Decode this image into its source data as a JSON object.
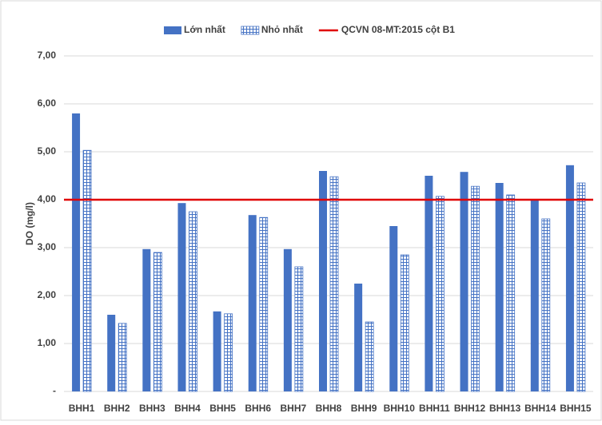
{
  "chart_data": {
    "type": "bar",
    "categories": [
      "BHH1",
      "BHH2",
      "BHH3",
      "BHH4",
      "BHH5",
      "BHH6",
      "BHH7",
      "BHH8",
      "BHH9",
      "BHH10",
      "BHH11",
      "BHH12",
      "BHH13",
      "BHH14",
      "BHH15"
    ],
    "series": [
      {
        "name": "Lớn nhất",
        "color": "#4472c4",
        "values": [
          5.8,
          1.6,
          2.97,
          3.93,
          1.67,
          3.68,
          2.97,
          4.6,
          2.25,
          3.45,
          4.5,
          4.58,
          4.35,
          4.0,
          4.72
        ]
      },
      {
        "name": "Nhỏ nhất",
        "color": "#4472c4",
        "values": [
          5.03,
          1.42,
          2.9,
          3.75,
          1.62,
          3.63,
          2.6,
          4.48,
          1.45,
          2.85,
          4.07,
          4.28,
          4.1,
          3.6,
          4.35
        ]
      }
    ],
    "reference_line": {
      "name": "QCVN 08-MT:2015 cột B1",
      "value": 4,
      "color": "#e00000"
    },
    "y_label": "DO (mg/l)",
    "ylim": [
      0,
      7
    ],
    "yticks": [
      {
        "value": 0,
        "label": "-"
      },
      {
        "value": 1,
        "label": "1,00"
      },
      {
        "value": 2,
        "label": "2,00"
      },
      {
        "value": 3,
        "label": "3,00"
      },
      {
        "value": 4,
        "label": "4,00"
      },
      {
        "value": 5,
        "label": "5,00"
      },
      {
        "value": 6,
        "label": "6,00"
      },
      {
        "value": 7,
        "label": "7,00"
      }
    ],
    "grid": true
  }
}
